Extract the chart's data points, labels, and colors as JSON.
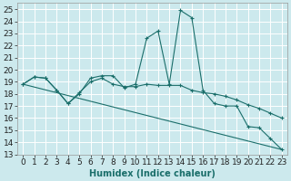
{
  "xlabel": "Humidex (Indice chaleur)",
  "bg_color": "#cce9ed",
  "grid_color": "#ffffff",
  "line_color": "#1a6e6a",
  "xlim": [
    -0.5,
    23.5
  ],
  "ylim": [
    13,
    25.5
  ],
  "yticks": [
    13,
    14,
    15,
    16,
    17,
    18,
    19,
    20,
    21,
    22,
    23,
    24,
    25
  ],
  "xticks": [
    0,
    1,
    2,
    3,
    4,
    5,
    6,
    7,
    8,
    9,
    10,
    11,
    12,
    13,
    14,
    15,
    16,
    17,
    18,
    19,
    20,
    21,
    22,
    23
  ],
  "series": [
    {
      "x": [
        0,
        1,
        2,
        3,
        4,
        5,
        6,
        7,
        8,
        9,
        10,
        11,
        12,
        13,
        14,
        15,
        16,
        17,
        18,
        19,
        20,
        21,
        22,
        23
      ],
      "y": [
        18.8,
        19.4,
        19.3,
        18.3,
        17.2,
        18.0,
        19.3,
        19.5,
        19.5,
        18.5,
        18.8,
        22.6,
        23.2,
        18.8,
        24.9,
        24.3,
        18.3,
        17.2,
        17.0,
        17.0,
        15.3,
        15.2,
        14.3,
        13.4
      ],
      "marker": true
    },
    {
      "x": [
        0,
        1,
        2,
        3,
        4,
        5,
        6,
        7,
        8,
        9,
        10,
        11,
        12,
        13,
        14,
        15,
        16,
        17,
        18,
        19,
        20,
        21,
        22,
        23
      ],
      "y": [
        18.8,
        19.4,
        19.3,
        18.3,
        17.2,
        18.1,
        19.0,
        19.3,
        18.8,
        18.6,
        18.6,
        18.8,
        18.7,
        18.7,
        18.7,
        18.3,
        18.1,
        18.0,
        17.8,
        17.5,
        17.1,
        16.8,
        16.4,
        16.0
      ],
      "marker": true
    },
    {
      "x": [
        0,
        23
      ],
      "y": [
        18.8,
        13.4
      ],
      "marker": false
    }
  ],
  "fontsize_xlabel": 7,
  "fontsize_ticks": 6.5
}
